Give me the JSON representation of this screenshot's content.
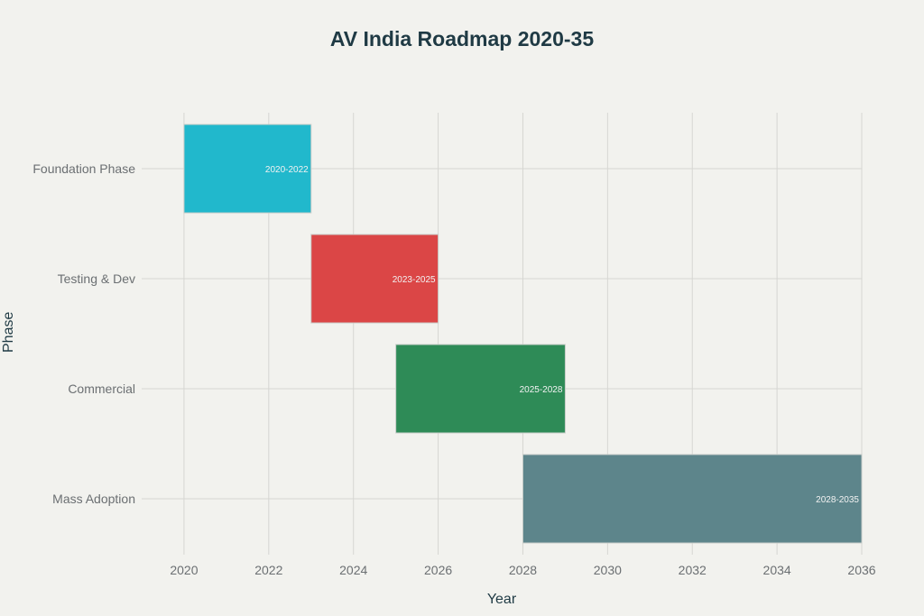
{
  "chart_data": {
    "type": "bar",
    "orientation": "horizontal-gantt",
    "title": "AV India Roadmap 2020-35",
    "xlabel": "Year",
    "ylabel": "Phase",
    "xlim": [
      2019,
      2036
    ],
    "xticks": [
      2020,
      2022,
      2024,
      2026,
      2028,
      2030,
      2032,
      2034,
      2036
    ],
    "grid": true,
    "legend": "none",
    "categories": [
      "Foundation Phase",
      "Testing & Dev",
      "Commercial",
      "Mass Adoption"
    ],
    "tasks": [
      {
        "phase": "Foundation Phase",
        "start": 2020,
        "end": 2023,
        "label": "2020-2022",
        "color": "#21b8cc"
      },
      {
        "phase": "Testing & Dev",
        "start": 2023,
        "end": 2026,
        "label": "2023-2025",
        "color": "#db4646"
      },
      {
        "phase": "Commercial",
        "start": 2025,
        "end": 2029,
        "label": "2025-2028",
        "color": "#2e8b57"
      },
      {
        "phase": "Mass Adoption",
        "start": 2028,
        "end": 2036,
        "label": "2028-2035",
        "color": "#5d858b"
      }
    ]
  }
}
